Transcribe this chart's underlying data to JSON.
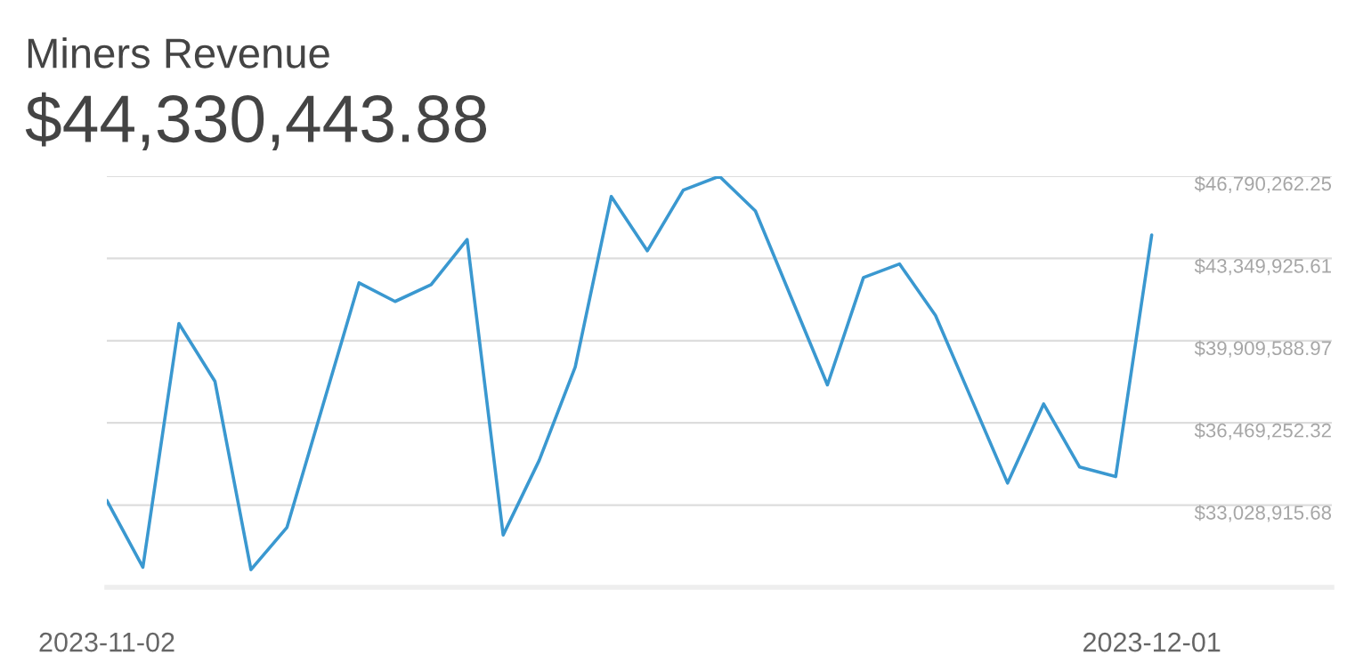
{
  "chart_data": {
    "type": "line",
    "title": "Miners Revenue",
    "subtitle": "$44,330,443.88",
    "x": [
      "2023-11-02",
      "2023-11-03",
      "2023-11-04",
      "2023-11-05",
      "2023-11-06",
      "2023-11-07",
      "2023-11-08",
      "2023-11-09",
      "2023-11-10",
      "2023-11-11",
      "2023-11-12",
      "2023-11-13",
      "2023-11-14",
      "2023-11-15",
      "2023-11-16",
      "2023-11-17",
      "2023-11-18",
      "2023-11-19",
      "2023-11-20",
      "2023-11-21",
      "2023-11-22",
      "2023-11-23",
      "2023-11-24",
      "2023-11-25",
      "2023-11-26",
      "2023-11-27",
      "2023-11-28",
      "2023-11-29",
      "2023-11-30",
      "2023-12-01"
    ],
    "series": [
      {
        "color": "#3a98d0",
        "values": [
          33220000,
          30430000,
          40630000,
          38210000,
          30330000,
          32100000,
          37220000,
          42330000,
          41550000,
          42250000,
          44140000,
          31780000,
          34900000,
          38810000,
          45940000,
          43670000,
          46210000,
          46790000,
          45340000,
          41700000,
          38060000,
          42550000,
          43120000,
          40960000,
          37460000,
          33950000,
          37260000,
          34620000,
          34220000,
          44330000
        ]
      }
    ],
    "xlim": [
      "2023-11-02",
      "2023-12-06"
    ],
    "xticks": [
      {
        "value": "2023-11-02",
        "label": "2023-11-02"
      },
      {
        "value": "2023-12-01",
        "label": "2023-12-01"
      }
    ],
    "ylim": [
      29588579.04,
      46790262.25
    ],
    "yticks": [
      {
        "value": 33028915.68,
        "label": "$33,028,915.68"
      },
      {
        "value": 36469252.32,
        "label": "$36,469,252.32"
      },
      {
        "value": 39909588.97,
        "label": "$39,909,588.97"
      },
      {
        "value": 43349925.61,
        "label": "$43,349,925.61"
      },
      {
        "value": 46790262.25,
        "label": "$46,790,262.25"
      }
    ],
    "grid": "y",
    "legend": false,
    "marker": "none",
    "line_style": "solid"
  }
}
